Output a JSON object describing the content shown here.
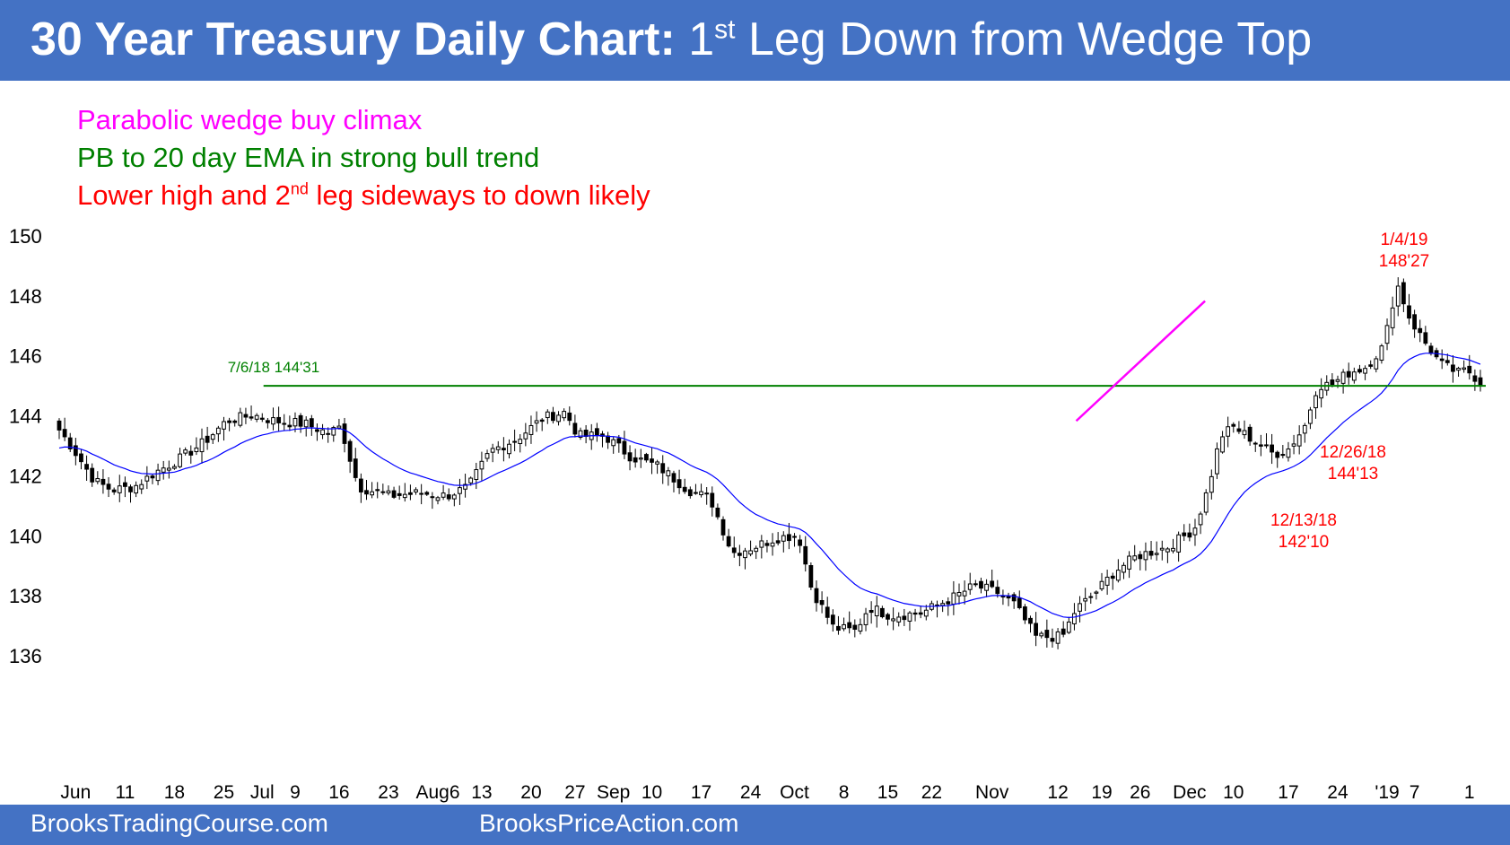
{
  "header": {
    "title_bold": "30 Year Treasury Daily Chart:",
    "title_pre": " 1",
    "title_sup": "st",
    "title_post": " Leg Down from Wedge Top",
    "bg": "#4472c4"
  },
  "notes": [
    {
      "pre": "Parabolic wedge buy climax",
      "sup": "",
      "post": "",
      "color": "#ff00ff"
    },
    {
      "pre": "PB to 20 day EMA in strong bull trend",
      "sup": "",
      "post": "",
      "color": "#008000"
    },
    {
      "pre": "Lower high and 2",
      "sup": "nd",
      "post": " leg sideways to down likely",
      "color": "#ff0000"
    }
  ],
  "footer": {
    "left": "BrooksTradingCourse.com",
    "right": "BrooksPriceAction.com"
  },
  "chart_data": {
    "type": "candlestick",
    "ylim": [
      134.5,
      151
    ],
    "y_ticks": [
      136,
      138,
      140,
      142,
      144,
      146,
      148,
      150
    ],
    "x_ticks": [
      "Jun",
      "11",
      "18",
      "25",
      "Jul",
      "9",
      "16",
      "23",
      "Aug6",
      "13",
      "20",
      "27",
      "Sep",
      "10",
      "17",
      "24",
      "Oct",
      "8",
      "15",
      "22",
      "Nov",
      "12",
      "19",
      "26",
      "Dec",
      "10",
      "17",
      "24",
      "'19",
      "7",
      "1"
    ],
    "x_tick_index": [
      3,
      12,
      21,
      30,
      37,
      43,
      51,
      60,
      69,
      77,
      86,
      94,
      101,
      108,
      117,
      126,
      134,
      143,
      151,
      159,
      170,
      182,
      190,
      197,
      206,
      214,
      224,
      233,
      242,
      247,
      257
    ],
    "num_bars": 260,
    "ema_label": "20 day EMA",
    "ema_color": "#0000ff",
    "candles_ohlc": [],
    "support_line": {
      "value": 144.97,
      "from_index": 46,
      "label": "7/6/18 144'31",
      "color": "#008000"
    },
    "wedge_line": {
      "from": [
        229,
        143.8
      ],
      "to": [
        258,
        147.8
      ],
      "color": "#ff00ff"
    },
    "annotations": [
      {
        "line1": "1/4/19",
        "line2": "148'27",
        "color": "#ff0000"
      },
      {
        "line1": "12/26/18",
        "line2": "144'13",
        "color": "#ff0000"
      },
      {
        "line1": "12/13/18",
        "line2": "142'10",
        "color": "#ff0000"
      }
    ],
    "up_color": "#ffffff",
    "down_color": "#000000"
  }
}
